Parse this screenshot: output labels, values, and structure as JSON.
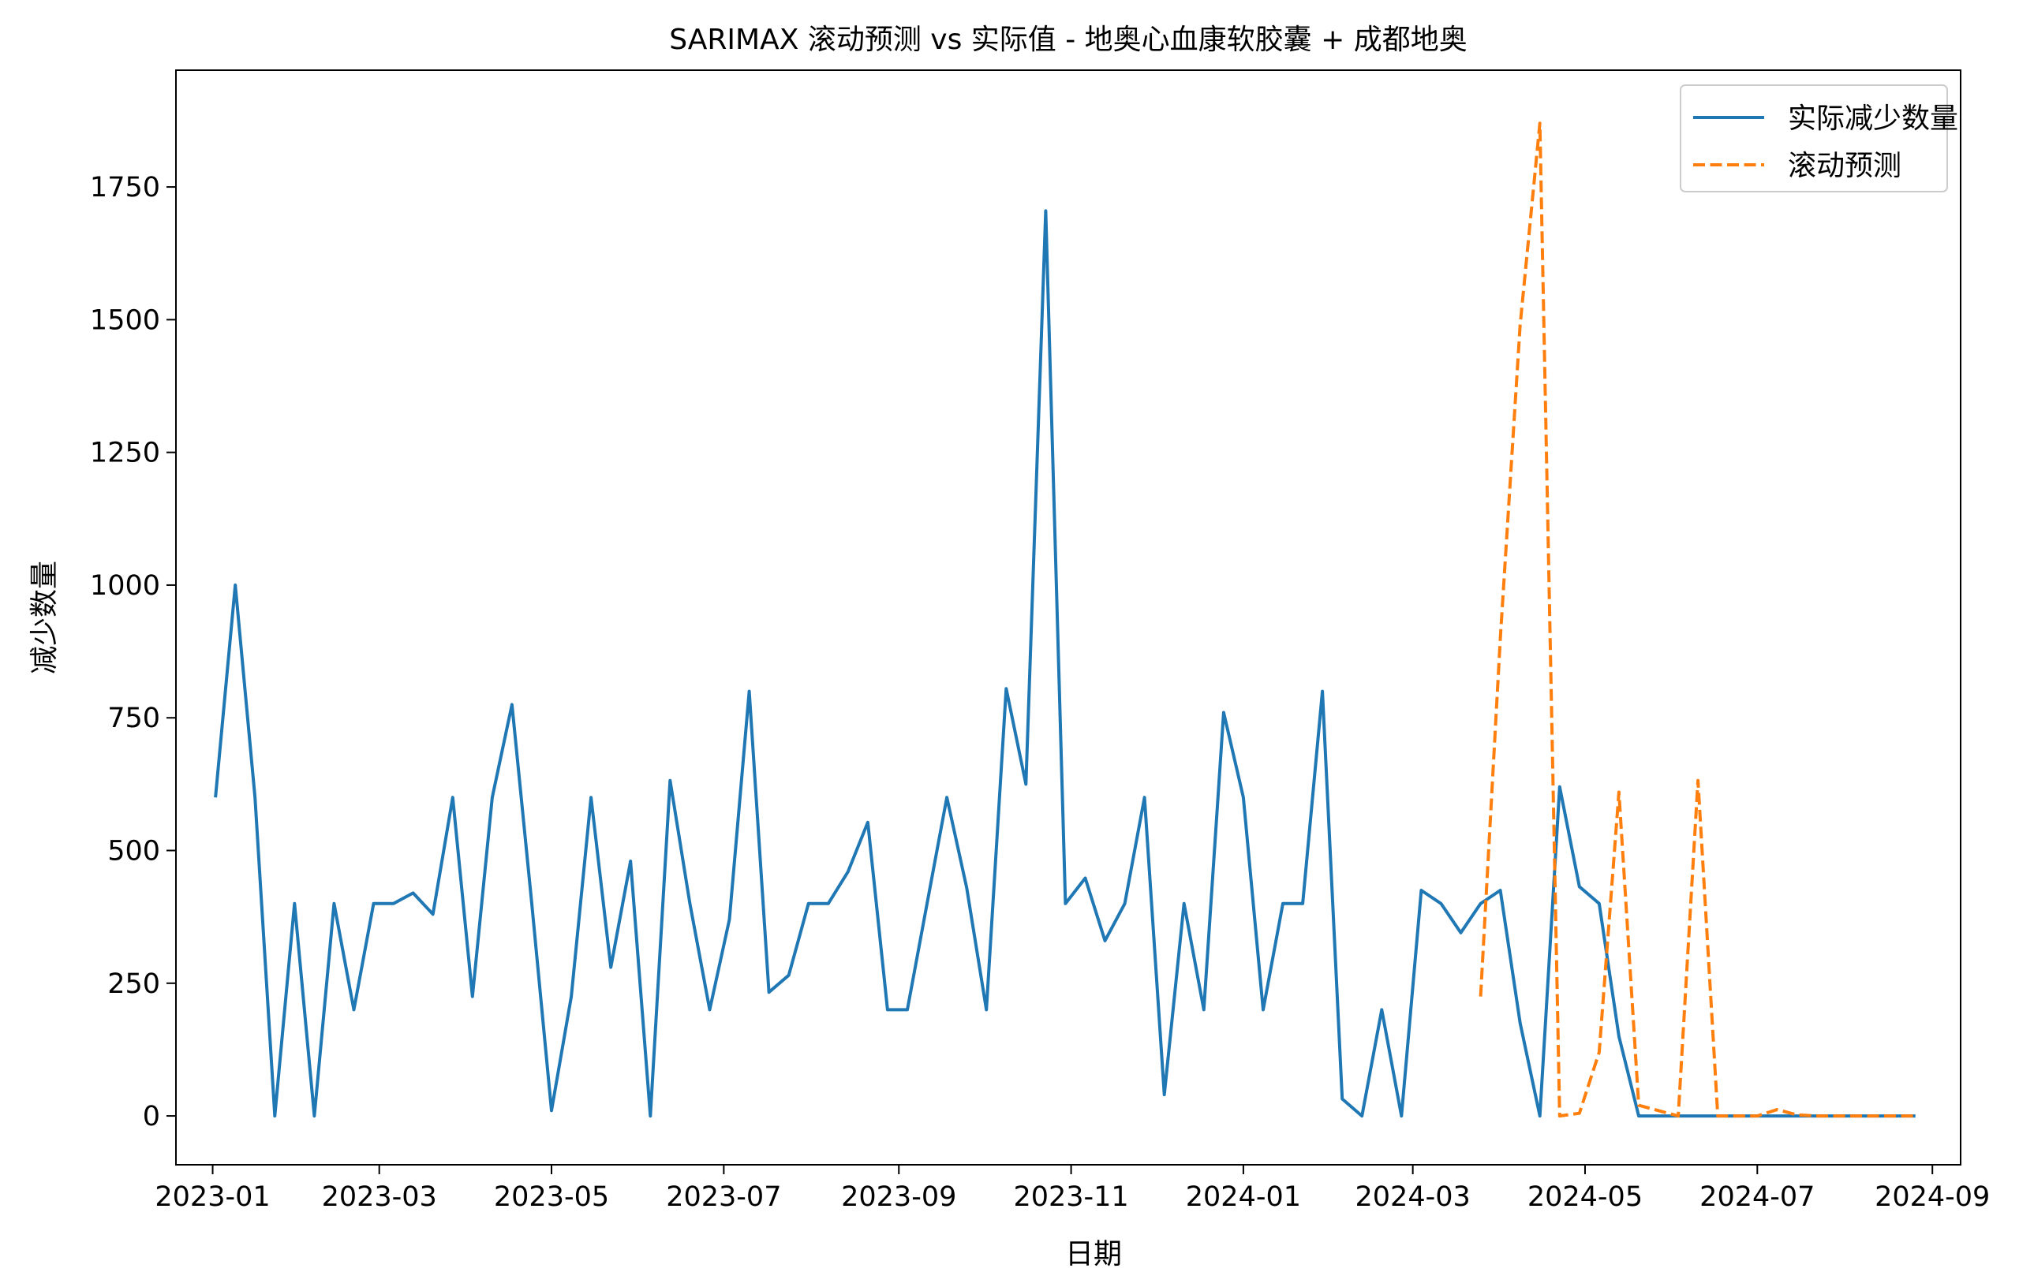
{
  "chart_data": {
    "type": "line",
    "title": "SARIMAX 滚动预测 vs 实际值 - 地奥心血康软胶囊 + 成都地奥",
    "xlabel": "日期",
    "ylabel": "减少数量",
    "xlim": [
      "2022-12-19",
      "2024-09-11"
    ],
    "ylim": [
      -92,
      1970
    ],
    "x_ticks": [
      "2023-01-01",
      "2023-03-01",
      "2023-05-01",
      "2023-07-01",
      "2023-09-01",
      "2023-11-01",
      "2024-01-01",
      "2024-03-01",
      "2024-05-01",
      "2024-07-01",
      "2024-09-01"
    ],
    "x_tick_labels": [
      "2023-01",
      "2023-03",
      "2023-05",
      "2023-07",
      "2023-09",
      "2023-11",
      "2024-01",
      "2024-03",
      "2024-05",
      "2024-07",
      "2024-09"
    ],
    "y_ticks": [
      0,
      250,
      500,
      750,
      1000,
      1250,
      1500,
      1750
    ],
    "y_tick_labels": [
      "0",
      "250",
      "500",
      "750",
      "1000",
      "1250",
      "1500",
      "1750"
    ],
    "grid": false,
    "legend_position": "top-right",
    "x": [
      "2023-01-02",
      "2023-01-09",
      "2023-01-16",
      "2023-01-23",
      "2023-01-30",
      "2023-02-06",
      "2023-02-13",
      "2023-02-20",
      "2023-02-27",
      "2023-03-06",
      "2023-03-13",
      "2023-03-20",
      "2023-03-27",
      "2023-04-03",
      "2023-04-10",
      "2023-04-17",
      "2023-04-24",
      "2023-05-01",
      "2023-05-08",
      "2023-05-15",
      "2023-05-22",
      "2023-05-29",
      "2023-06-05",
      "2023-06-12",
      "2023-06-19",
      "2023-06-26",
      "2023-07-03",
      "2023-07-10",
      "2023-07-17",
      "2023-07-24",
      "2023-07-31",
      "2023-08-07",
      "2023-08-14",
      "2023-08-21",
      "2023-08-28",
      "2023-09-04",
      "2023-09-11",
      "2023-09-18",
      "2023-09-25",
      "2023-10-02",
      "2023-10-09",
      "2023-10-16",
      "2023-10-23",
      "2023-10-30",
      "2023-11-06",
      "2023-11-13",
      "2023-11-20",
      "2023-11-27",
      "2023-12-04",
      "2023-12-11",
      "2023-12-18",
      "2023-12-25",
      "2024-01-01",
      "2024-01-08",
      "2024-01-15",
      "2024-01-22",
      "2024-01-29",
      "2024-02-05",
      "2024-02-12",
      "2024-02-19",
      "2024-02-26",
      "2024-03-04",
      "2024-03-11",
      "2024-03-18",
      "2024-03-25",
      "2024-04-01",
      "2024-04-08",
      "2024-04-15",
      "2024-04-22",
      "2024-04-29",
      "2024-05-06",
      "2024-05-13",
      "2024-05-20",
      "2024-05-27",
      "2024-06-03",
      "2024-06-10",
      "2024-06-17",
      "2024-06-24",
      "2024-07-01",
      "2024-07-08",
      "2024-07-15",
      "2024-07-22",
      "2024-07-29",
      "2024-08-05",
      "2024-08-12",
      "2024-08-19",
      "2024-08-26"
    ],
    "series": [
      {
        "name": "实际减少数量",
        "color": "#1f77b4",
        "style": "solid",
        "values": [
          600,
          1000,
          600,
          0,
          400,
          0,
          400,
          200,
          400,
          400,
          420,
          380,
          600,
          225,
          600,
          775,
          400,
          10,
          225,
          600,
          280,
          480,
          0,
          632,
          400,
          200,
          370,
          800,
          233,
          265,
          400,
          400,
          460,
          553,
          200,
          200,
          400,
          600,
          430,
          200,
          805,
          625,
          1705,
          400,
          448,
          330,
          400,
          600,
          40,
          400,
          200,
          760,
          600,
          200,
          400,
          400,
          800,
          32,
          0,
          200,
          0,
          425,
          400,
          345,
          400,
          425,
          175,
          0,
          620,
          432,
          400,
          150,
          0,
          0,
          0,
          0,
          0,
          0,
          0,
          0,
          0,
          0,
          0,
          0,
          0,
          0,
          0
        ]
      },
      {
        "name": "滚动预测",
        "color": "#ff7f0e",
        "style": "dashed",
        "x": [
          "2024-03-25",
          "2024-04-01",
          "2024-04-08",
          "2024-04-15",
          "2024-04-22",
          "2024-04-29",
          "2024-05-06",
          "2024-05-13",
          "2024-05-20",
          "2024-05-27",
          "2024-06-03",
          "2024-06-10",
          "2024-06-17",
          "2024-06-24",
          "2024-07-01",
          "2024-07-08",
          "2024-07-15",
          "2024-07-22",
          "2024-07-29",
          "2024-08-05",
          "2024-08-12",
          "2024-08-19",
          "2024-08-26"
        ],
        "values": [
          225,
          900,
          1490,
          1870,
          0,
          5,
          120,
          610,
          20,
          10,
          0,
          632,
          0,
          0,
          0,
          12,
          2,
          0,
          0,
          0,
          0,
          0,
          0
        ]
      }
    ]
  }
}
